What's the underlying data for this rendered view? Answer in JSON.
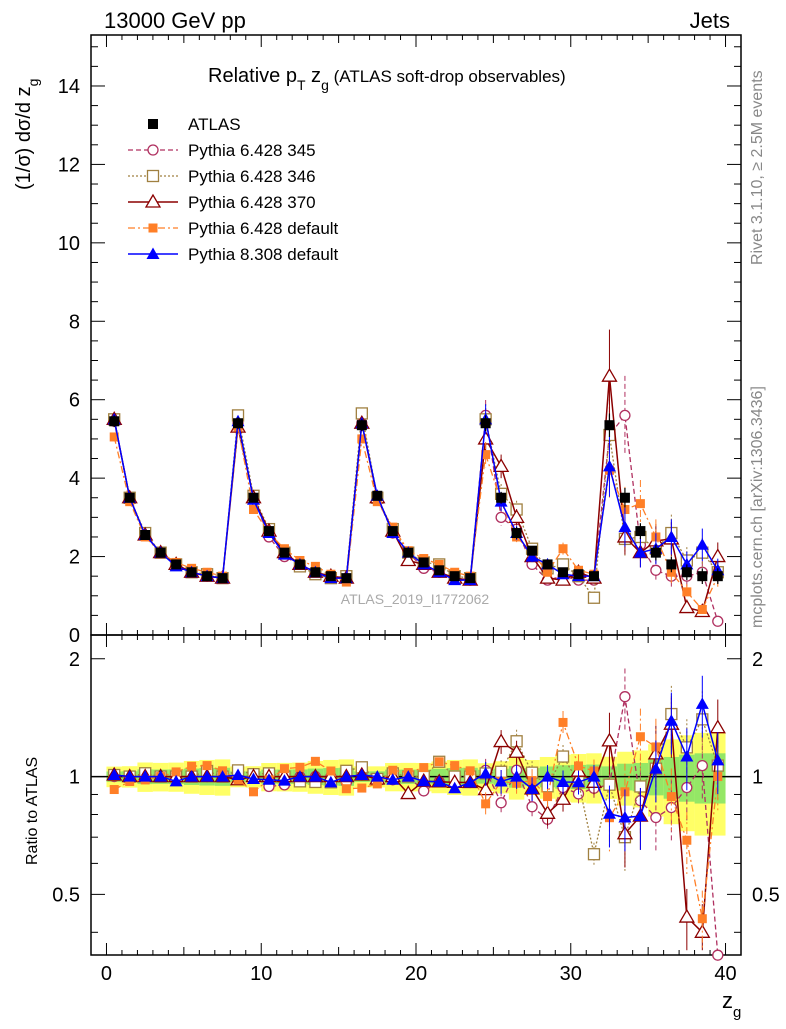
{
  "header": {
    "beam": "13000 GeV pp",
    "process": "Jets",
    "title_main": "Relative p",
    "title_sub1": "T",
    "title_mid": " z",
    "title_sub2": "g",
    "title_rest": " (ATLAS soft-drop observables)"
  },
  "side_labels": {
    "rivet": "Rivet 3.1.10, ≥ 2.5M events",
    "mcplots": "mcplots.cern.ch [arXiv:1306.3436]"
  },
  "analysis_id": "ATLAS_2019_I1772062",
  "axes": {
    "ylabel_top": "(1/σ) dσ/d z",
    "ylabel_top_sub": "g",
    "ylabel_bottom": "Ratio to ATLAS",
    "xlabel": "z",
    "xlabel_sub": "g"
  },
  "colors": {
    "ATLAS": "#000000",
    "p345": "#b03060",
    "p346": "#a08040",
    "p370": "#8b0000",
    "p6def": "#ff7f27",
    "p8def": "#0000ff",
    "band_inner": "#66dd66",
    "band_outer": "#ffff66"
  },
  "chart_data": {
    "type": "line",
    "x": [
      0.5,
      1.5,
      2.5,
      3.5,
      4.5,
      5.5,
      6.5,
      7.5,
      8.5,
      9.5,
      10.5,
      11.5,
      12.5,
      13.5,
      14.5,
      15.5,
      16.5,
      17.5,
      18.5,
      19.5,
      20.5,
      21.5,
      22.5,
      23.5,
      24.5,
      25.5,
      26.5,
      27.5,
      28.5,
      29.5,
      30.5,
      31.5,
      32.5,
      33.5,
      34.5,
      35.5,
      36.5,
      37.5,
      38.5,
      39.5
    ],
    "xlim": [
      -1,
      41
    ],
    "ylim_top": [
      0,
      15.3
    ],
    "ylim_ratio": [
      0.35,
      2.3
    ],
    "x_ticks": [
      0,
      10,
      20,
      30,
      40
    ],
    "y_ticks_top": [
      0,
      2,
      4,
      6,
      8,
      10,
      12,
      14
    ],
    "y_ticks_ratio": [
      0.5,
      1,
      2
    ],
    "legend_position": "top-left",
    "data_series": {
      "name": "ATLAS",
      "values": [
        5.45,
        3.5,
        2.55,
        2.1,
        1.8,
        1.6,
        1.5,
        1.45,
        5.4,
        3.5,
        2.65,
        2.1,
        1.8,
        1.6,
        1.5,
        1.45,
        5.35,
        3.55,
        2.65,
        2.1,
        1.85,
        1.65,
        1.5,
        1.45,
        5.4,
        3.5,
        2.6,
        2.15,
        1.8,
        1.6,
        1.55,
        1.5,
        5.35,
        3.5,
        2.65,
        2.1,
        1.8,
        1.6,
        1.5,
        1.5
      ],
      "errors": [
        0.15,
        0.1,
        0.1,
        0.08,
        0.07,
        0.07,
        0.07,
        0.07,
        0.15,
        0.1,
        0.1,
        0.08,
        0.07,
        0.07,
        0.07,
        0.07,
        0.15,
        0.1,
        0.1,
        0.08,
        0.07,
        0.07,
        0.07,
        0.07,
        0.2,
        0.15,
        0.15,
        0.1,
        0.1,
        0.1,
        0.1,
        0.1,
        0.3,
        0.25,
        0.2,
        0.2,
        0.2,
        0.2,
        0.2,
        0.2
      ]
    },
    "series": [
      {
        "name": "Pythia 6.428 345",
        "key": "p345",
        "values": [
          5.45,
          3.5,
          2.55,
          2.1,
          1.8,
          1.6,
          1.5,
          1.45,
          5.4,
          3.5,
          2.5,
          2.0,
          1.8,
          1.6,
          1.5,
          1.4,
          5.4,
          3.5,
          2.6,
          2.1,
          1.7,
          1.6,
          1.45,
          1.4,
          5.6,
          3.0,
          2.7,
          1.8,
          1.4,
          1.5,
          1.4,
          1.4,
          5.1,
          5.6,
          2.3,
          1.65,
          1.5,
          1.5,
          1.6,
          0.35
        ]
      },
      {
        "name": "Pythia 6.428 346",
        "key": "p346",
        "values": [
          5.5,
          3.5,
          2.6,
          2.1,
          1.8,
          1.6,
          1.55,
          1.45,
          5.6,
          3.55,
          2.7,
          2.1,
          1.75,
          1.55,
          1.45,
          1.5,
          5.65,
          3.5,
          2.7,
          2.1,
          1.85,
          1.8,
          1.5,
          1.45,
          5.5,
          3.6,
          3.2,
          2.2,
          1.7,
          1.8,
          1.5,
          0.95,
          5.1,
          2.45,
          2.5,
          2.2,
          2.6,
          1.9,
          2.1,
          1.6
        ]
      },
      {
        "name": "Pythia 6.428 370",
        "key": "p370",
        "values": [
          5.5,
          3.5,
          2.55,
          2.1,
          1.8,
          1.6,
          1.5,
          1.45,
          5.3,
          3.5,
          2.65,
          2.1,
          1.8,
          1.6,
          1.5,
          1.45,
          5.4,
          3.5,
          2.65,
          1.9,
          1.8,
          1.6,
          1.45,
          1.4,
          5.0,
          4.3,
          3.0,
          2.0,
          1.45,
          1.4,
          1.6,
          1.45,
          6.6,
          2.5,
          2.1,
          2.4,
          2.45,
          0.7,
          0.6,
          2.0
        ]
      },
      {
        "name": "Pythia 6.428 default",
        "key": "p6def",
        "values": [
          5.05,
          3.4,
          2.5,
          2.1,
          1.85,
          1.7,
          1.6,
          1.5,
          5.3,
          3.2,
          2.6,
          2.2,
          1.9,
          1.75,
          1.55,
          1.35,
          5.0,
          3.4,
          2.75,
          2.15,
          1.95,
          1.8,
          1.6,
          1.5,
          4.6,
          3.4,
          2.5,
          2.1,
          1.6,
          2.2,
          1.65,
          1.55,
          4.2,
          3.2,
          3.35,
          2.5,
          1.6,
          1.1,
          0.65,
          1.5
        ]
      },
      {
        "name": "Pythia 8.308 default",
        "key": "p8def",
        "values": [
          5.5,
          3.5,
          2.55,
          2.1,
          1.75,
          1.6,
          1.5,
          1.45,
          5.45,
          3.45,
          2.6,
          2.05,
          1.8,
          1.6,
          1.45,
          1.45,
          5.4,
          3.55,
          2.6,
          2.1,
          1.8,
          1.6,
          1.4,
          1.4,
          5.5,
          3.4,
          2.6,
          2.0,
          1.8,
          1.55,
          1.5,
          1.5,
          4.3,
          2.75,
          2.1,
          2.2,
          2.5,
          1.8,
          2.3,
          1.65
        ]
      }
    ]
  }
}
